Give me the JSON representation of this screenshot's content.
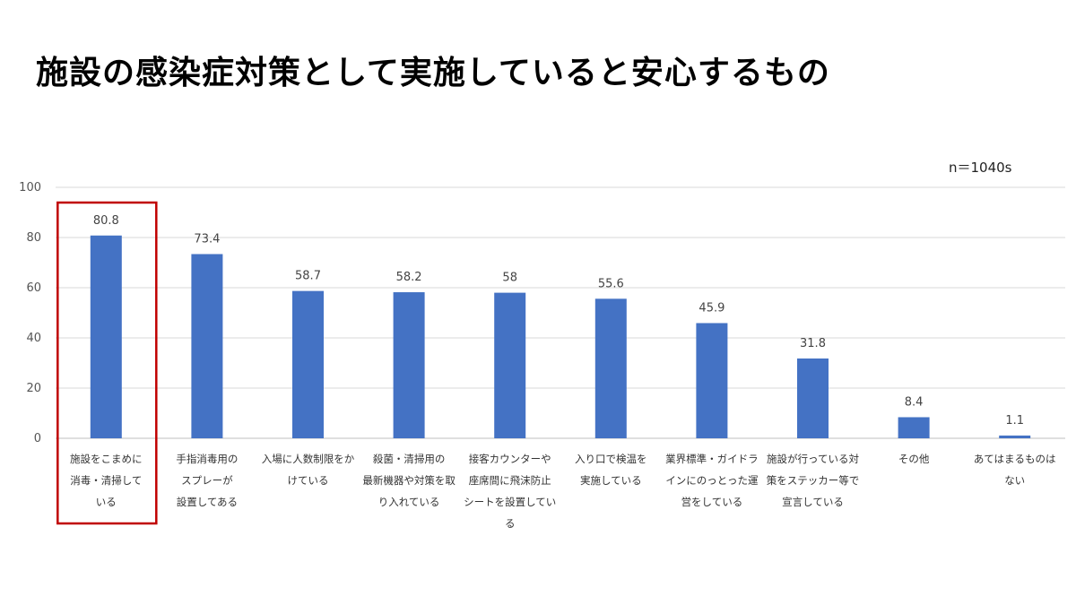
{
  "page_title": "施設の感染症対策として実施していると安心するもの",
  "sample_note": "n＝1040s",
  "colors": {
    "bar": "#4472C4",
    "highlight_box": "#C00000",
    "gridline": "#D9D9D9"
  },
  "chart_data": {
    "type": "bar",
    "title": "",
    "xlabel": "",
    "ylabel": "",
    "ylim": [
      0,
      100
    ],
    "yticks": [
      0,
      20,
      40,
      60,
      80,
      100
    ],
    "grid": true,
    "legend": "none",
    "categories": [
      "施設をこまめに消毒・清掃している",
      "手指消毒用のスプレーが設置してある",
      "入場に人数制限をかけている",
      "殺菌・清掃用の最新機器や対策を取り入れている",
      "接客カウンターや座席間に飛沫防止シートを設置している",
      "入り口で検温を実施している",
      "業界標準・ガイドラインにのっとった運営をしている",
      "施設が行っている対策をステッカー等で宣言している",
      "その他",
      "あてはまるものはない"
    ],
    "category_lines": [
      [
        "施設をこまめに",
        "消毒・清掃して",
        "いる"
      ],
      [
        "手指消毒用の",
        "スプレーが",
        "設置してある"
      ],
      [
        "入場に人数制限をか",
        "けている"
      ],
      [
        "殺菌・清掃用の",
        "最新機器や対策を取",
        "り入れている"
      ],
      [
        "接客カウンターや",
        "座席間に飛沫防止",
        "シートを設置してい",
        "る"
      ],
      [
        "入り口で検温を",
        "実施している"
      ],
      [
        "業界標準・ガイドラ",
        "インにのっとった運",
        "営をしている"
      ],
      [
        "施設が行っている対",
        "策をステッカー等で",
        "宣言している"
      ],
      [
        "その他"
      ],
      [
        "あてはまるものは",
        "ない"
      ]
    ],
    "values": [
      80.8,
      73.4,
      58.7,
      58.2,
      58,
      55.6,
      45.9,
      31.8,
      8.4,
      1.1
    ],
    "value_labels": [
      "80.8",
      "73.4",
      "58.7",
      "58.2",
      "58",
      "55.6",
      "45.9",
      "31.8",
      "8.4",
      "1.1"
    ],
    "highlighted_index": 0
  }
}
